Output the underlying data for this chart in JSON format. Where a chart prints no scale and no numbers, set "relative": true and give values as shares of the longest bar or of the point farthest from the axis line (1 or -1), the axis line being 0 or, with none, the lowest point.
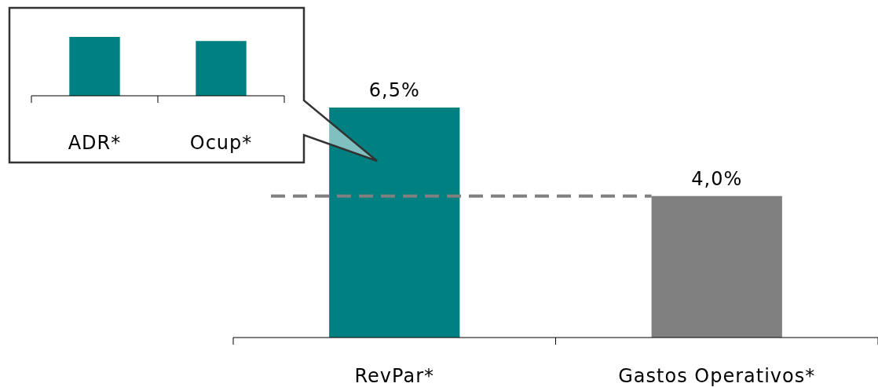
{
  "chart_data": [
    {
      "type": "bar",
      "categories": [
        "RevPar*",
        "Gastos Operativos*"
      ],
      "values": [
        6.5,
        4.0
      ],
      "colors": [
        "#008080",
        "#808080"
      ],
      "value_labels": [
        "6,5%",
        "4,0%"
      ],
      "ref_lines": [
        {
          "axis": "y",
          "value": 4.0,
          "color": "#808080",
          "line_style": "dashed"
        }
      ]
    },
    {
      "type": "bar",
      "categories": [
        "ADR*",
        "Ocup*"
      ],
      "values": [
        1,
        0.93
      ],
      "color": "#008080",
      "relative": true
    }
  ]
}
